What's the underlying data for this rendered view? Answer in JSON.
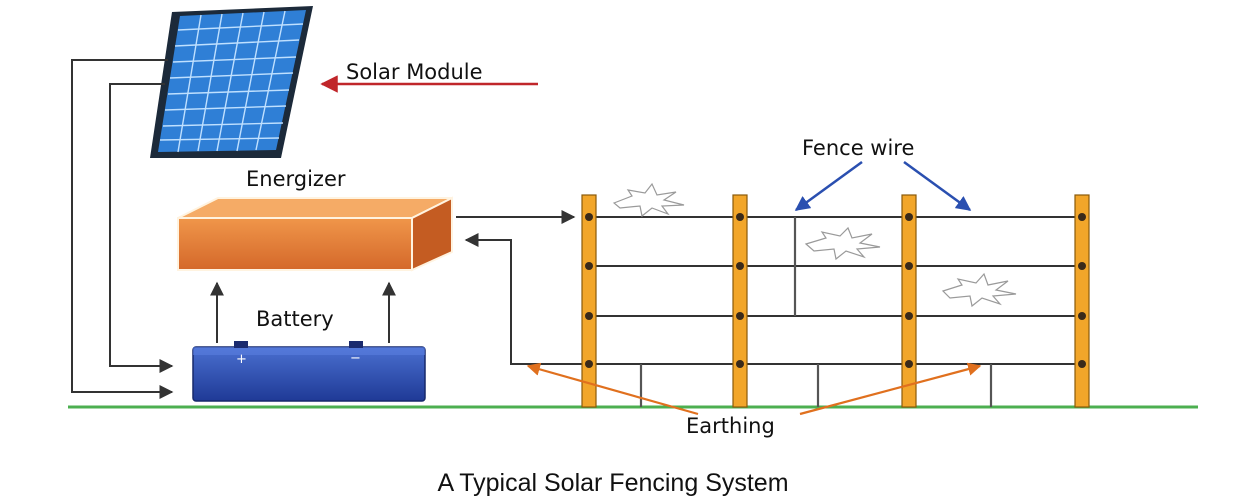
{
  "labels": {
    "solar_module": "Solar Module",
    "energizer": "Energizer",
    "battery": "Battery",
    "fence_wire": "Fence wire",
    "earthing": "Earthing",
    "battery_plus": "+",
    "battery_minus": "−"
  },
  "caption": "A Typical Solar Fencing System",
  "colors": {
    "ground": "#4caf50",
    "solar_panel": "#2f7fd6",
    "energizer": "#e07a2e",
    "battery": "#2f4fb4",
    "fence_post": "#f2a62a",
    "arrow_red": "#c0262a",
    "arrow_blue": "#2a4fb0",
    "arrow_orange": "#e0701e",
    "wire": "#333333"
  }
}
